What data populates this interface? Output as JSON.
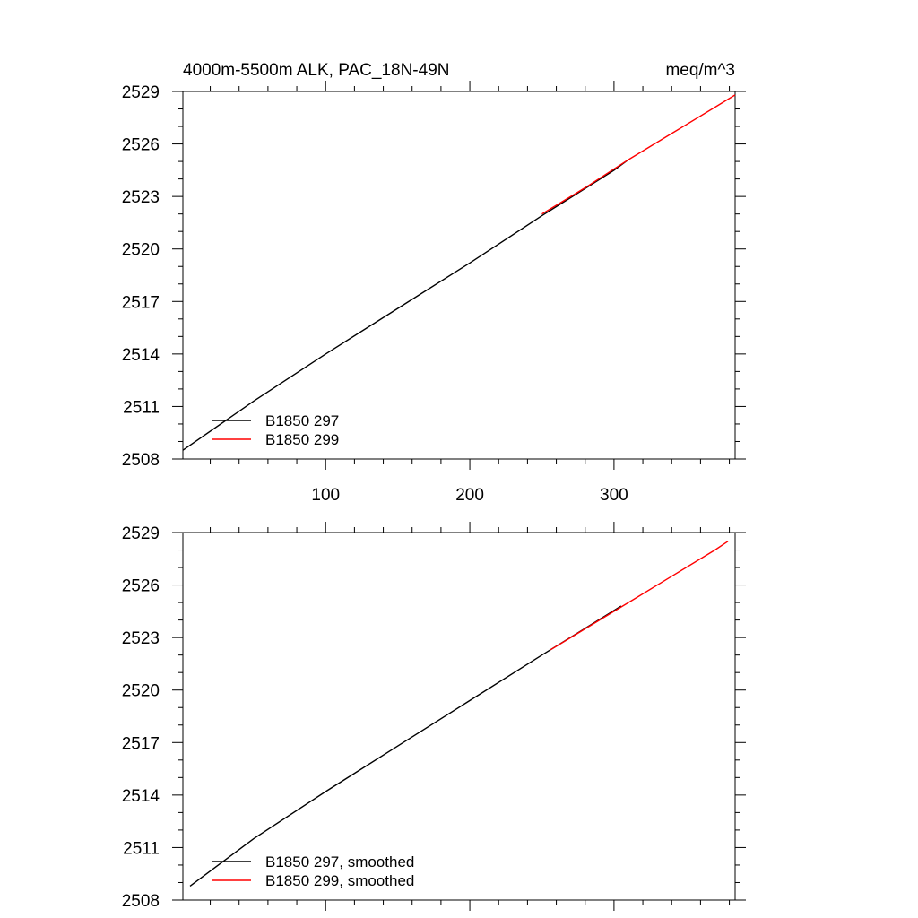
{
  "chart_data": [
    {
      "type": "line",
      "title_left": "4000m-5500m ALK, PAC_18N-49N",
      "title_right": "meq/m^3",
      "xlabel": "",
      "ylabel": "",
      "xlim": [
        1,
        384
      ],
      "ylim": [
        2508,
        2529
      ],
      "x_ticks": [
        100,
        200,
        300
      ],
      "y_ticks": [
        2508,
        2511,
        2514,
        2517,
        2520,
        2523,
        2526,
        2529
      ],
      "x_tick_labels_visible": true,
      "legend_position": "bottom-left",
      "series": [
        {
          "name": "B1850 297",
          "color": "#000000",
          "x": [
            1,
            50,
            100,
            150,
            200,
            250,
            300,
            310
          ],
          "y": [
            2508.5,
            2511.3,
            2514.0,
            2516.6,
            2519.2,
            2521.9,
            2524.5,
            2525.1
          ]
        },
        {
          "name": "B1850 299",
          "color": "#ff0000",
          "x": [
            250,
            280,
            310,
            340,
            370,
            384
          ],
          "y": [
            2522.0,
            2523.5,
            2525.1,
            2526.6,
            2528.1,
            2528.8
          ]
        }
      ]
    },
    {
      "type": "line",
      "title_left": "",
      "title_right": "",
      "xlabel": "",
      "ylabel": "",
      "xlim": [
        1,
        384
      ],
      "ylim": [
        2508,
        2529
      ],
      "x_ticks": [
        100,
        200,
        300
      ],
      "y_ticks": [
        2508,
        2511,
        2514,
        2517,
        2520,
        2523,
        2526,
        2529
      ],
      "x_tick_labels_visible": false,
      "legend_position": "bottom-left",
      "series": [
        {
          "name": "B1850 297, smoothed",
          "color": "#000000",
          "x": [
            6,
            50,
            100,
            150,
            200,
            250,
            305
          ],
          "y": [
            2508.8,
            2511.5,
            2514.2,
            2516.8,
            2519.4,
            2522.0,
            2524.8
          ]
        },
        {
          "name": "B1850 299, smoothed",
          "color": "#ff0000",
          "x": [
            256,
            280,
            310,
            340,
            370,
            379
          ],
          "y": [
            2522.3,
            2523.5,
            2525.0,
            2526.5,
            2528.0,
            2528.5
          ]
        }
      ]
    }
  ]
}
